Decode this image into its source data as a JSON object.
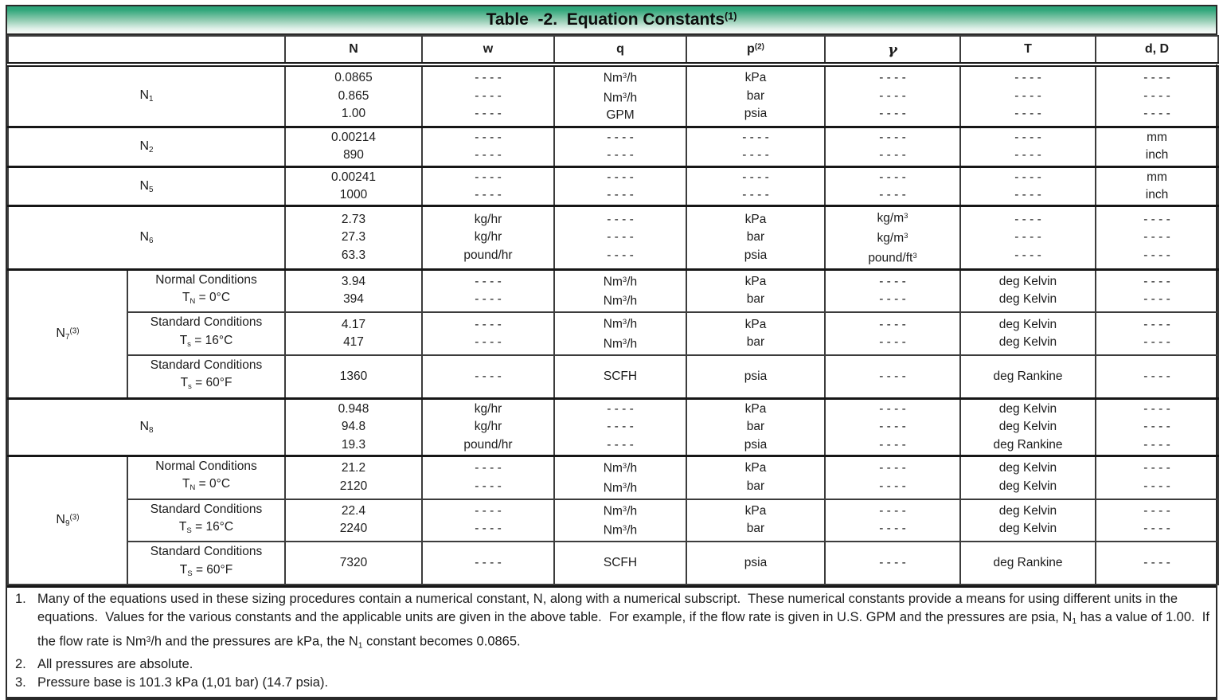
{
  "title": {
    "text": "Table  -2.  Equation Constants",
    "sup": "(1)"
  },
  "header": {
    "columns": [
      {
        "label": "",
        "span": 2
      },
      {
        "label": "N"
      },
      {
        "label": "w"
      },
      {
        "label": "q"
      },
      {
        "label": "p^(2)^"
      },
      {
        "label": "γ",
        "gamma": true
      },
      {
        "label": "T"
      },
      {
        "label": "d, D"
      }
    ]
  },
  "groups": [
    {
      "label": "N~1~",
      "rows": [
        {
          "cond": null,
          "cells": [
            [
              "0.0865",
              "0.865",
              "1.00"
            ],
            [
              "- - - -",
              "- - - -",
              "- - - -"
            ],
            [
              "Nm^3^/h",
              "Nm^3^/h",
              "GPM"
            ],
            [
              "kPa",
              "bar",
              "psia"
            ],
            [
              "- - - -",
              "- - - -",
              "- - - -"
            ],
            [
              "- - - -",
              "- - - -",
              "- - - -"
            ],
            [
              "- - - -",
              "- - - -",
              "- - - -"
            ]
          ]
        }
      ]
    },
    {
      "label": "N~2~",
      "rows": [
        {
          "cond": null,
          "cells": [
            [
              "0.00214",
              "890"
            ],
            [
              "- - - -",
              "- - - -"
            ],
            [
              "- - - -",
              "- - - -"
            ],
            [
              "- - - -",
              "- - - -"
            ],
            [
              "- - - -",
              "- - - -"
            ],
            [
              "- - - -",
              "- - - -"
            ],
            [
              "mm",
              "inch"
            ]
          ]
        }
      ]
    },
    {
      "label": "N~5~",
      "rows": [
        {
          "cond": null,
          "cells": [
            [
              "0.00241",
              "1000"
            ],
            [
              "- - - -",
              "- - - -"
            ],
            [
              "- - - -",
              "- - - -"
            ],
            [
              "- - - -",
              "- - - -"
            ],
            [
              "- - - -",
              "- - - -"
            ],
            [
              "- - - -",
              "- - - -"
            ],
            [
              "mm",
              "inch"
            ]
          ]
        }
      ]
    },
    {
      "label": "N~6~",
      "rows": [
        {
          "cond": null,
          "cells": [
            [
              "2.73",
              "27.3",
              "63.3"
            ],
            [
              "kg/hr",
              "kg/hr",
              "pound/hr"
            ],
            [
              "- - - -",
              "- - - -",
              "- - - -"
            ],
            [
              "kPa",
              "bar",
              "psia"
            ],
            [
              "kg/m^3^",
              "kg/m^3^",
              "pound/ft^3^"
            ],
            [
              "- - - -",
              "- - - -",
              "- - - -"
            ],
            [
              "- - - -",
              "- - - -",
              "- - - -"
            ]
          ]
        }
      ]
    },
    {
      "label": "N~7~^(3)^",
      "rows": [
        {
          "cond": [
            "Normal Conditions",
            "T~N~ = 0°C"
          ],
          "cells": [
            [
              "3.94",
              "394"
            ],
            [
              "- - - -",
              "- - - -"
            ],
            [
              "Nm^3^/h",
              "Nm^3^/h"
            ],
            [
              "kPa",
              "bar"
            ],
            [
              "- - - -",
              "- - - -"
            ],
            [
              "deg Kelvin",
              "deg Kelvin"
            ],
            [
              "- - - -",
              "- - - -"
            ]
          ]
        },
        {
          "cond": [
            "Standard Conditions",
            "T~s~ = 16°C"
          ],
          "cells": [
            [
              "4.17",
              "417"
            ],
            [
              "- - - -",
              "- - - -"
            ],
            [
              "Nm^3^/h",
              "Nm^3^/h"
            ],
            [
              "kPa",
              "bar"
            ],
            [
              "- - - -",
              "- - - -"
            ],
            [
              "deg Kelvin",
              "deg Kelvin"
            ],
            [
              "- - - -",
              "- - - -"
            ]
          ]
        },
        {
          "cond": [
            "Standard Conditions",
            "T~s~ = 60°F"
          ],
          "cells": [
            [
              "1360"
            ],
            [
              "- - - -"
            ],
            [
              "SCFH"
            ],
            [
              "psia"
            ],
            [
              "- - - -"
            ],
            [
              "deg Rankine"
            ],
            [
              "- - - -"
            ]
          ]
        }
      ]
    },
    {
      "label": "N~8~",
      "rows": [
        {
          "cond": null,
          "cells": [
            [
              "0.948",
              "94.8",
              "19.3"
            ],
            [
              "kg/hr",
              "kg/hr",
              "pound/hr"
            ],
            [
              "- - - -",
              "- - - -",
              "- - - -"
            ],
            [
              "kPa",
              "bar",
              "psia"
            ],
            [
              "- - - -",
              "- - - -",
              "- - - -"
            ],
            [
              "deg Kelvin",
              "deg Kelvin",
              "deg Rankine"
            ],
            [
              "- - - -",
              "- - - -",
              "- - - -"
            ]
          ]
        }
      ]
    },
    {
      "label": "N~9~^(3)^",
      "rows": [
        {
          "cond": [
            "Normal Conditions",
            "T~N~ = 0°C"
          ],
          "cells": [
            [
              "21.2",
              "2120"
            ],
            [
              "- - - -",
              "- - - -"
            ],
            [
              "Nm^3^/h",
              "Nm^3^/h"
            ],
            [
              "kPa",
              "bar"
            ],
            [
              "- - - -",
              "- - - -"
            ],
            [
              "deg Kelvin",
              "deg Kelvin"
            ],
            [
              "- - - -",
              "- - - -"
            ]
          ]
        },
        {
          "cond": [
            "Standard Conditions",
            "T~S~ = 16°C"
          ],
          "cells": [
            [
              "22.4",
              "2240"
            ],
            [
              "- - - -",
              "- - - -"
            ],
            [
              "Nm^3^/h",
              "Nm^3^/h"
            ],
            [
              "kPa",
              "bar"
            ],
            [
              "- - - -",
              "- - - -"
            ],
            [
              "deg Kelvin",
              "deg Kelvin"
            ],
            [
              "- - - -",
              "- - - -"
            ]
          ]
        },
        {
          "cond": [
            "Standard Conditions",
            "T~S~ = 60°F"
          ],
          "cells": [
            [
              "7320"
            ],
            [
              "- - - -"
            ],
            [
              "SCFH"
            ],
            [
              "psia"
            ],
            [
              "- - - -"
            ],
            [
              "deg Rankine"
            ],
            [
              "- - - -"
            ]
          ]
        }
      ]
    }
  ],
  "footnotes": [
    {
      "num": "1.",
      "text": "Many of the equations used in these sizing procedures contain a numerical constant, N, along with a numerical subscript.  These numerical constants provide a means for using different units in the equations.  Values for the various constants and the applicable units are given in the above table.  For example, if the flow rate is given in U.S. GPM and the pressures are psia, N~1~ has a value of 1.00.  If the flow rate is Nm^3^/h and the pressures are kPa, the N~1~ constant becomes 0.0865."
    },
    {
      "num": "2.",
      "text": "All pressures are absolute."
    },
    {
      "num": "3.",
      "text": "Pressure base is 101.3 kPa (1,01 bar) (14.7 psia)."
    }
  ]
}
